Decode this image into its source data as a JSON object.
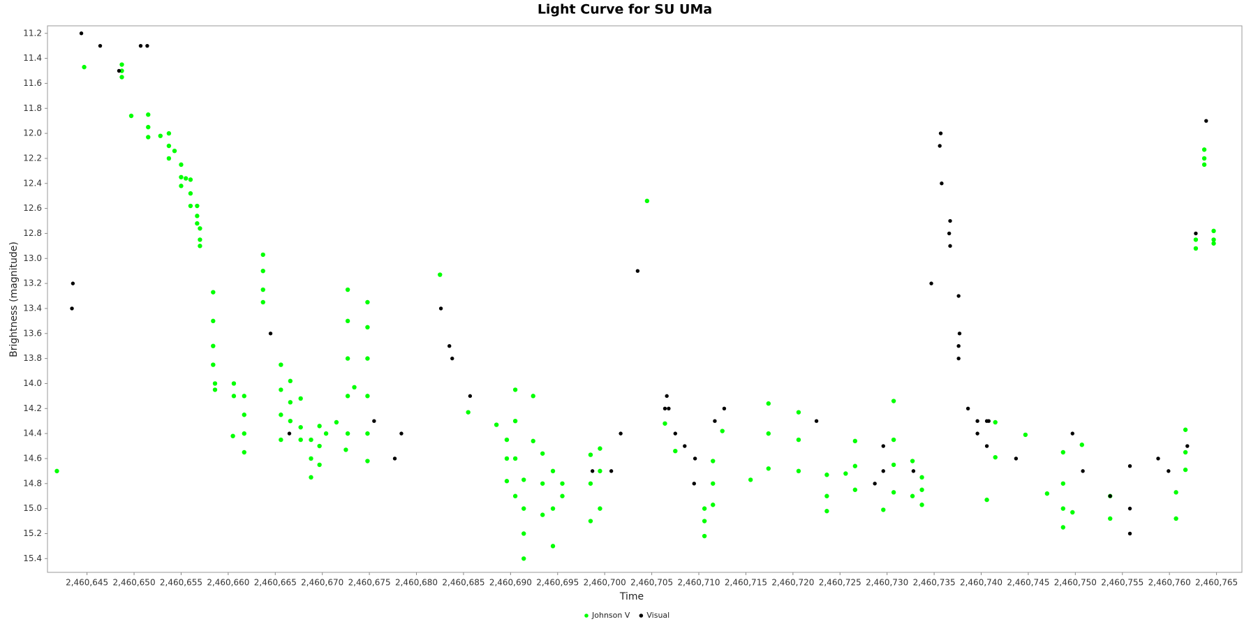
{
  "chart_data": {
    "type": "scatter",
    "title": "Light Curve for SU UMa",
    "x_label": "Time",
    "y_label": "Brightness (magnitude)",
    "y_inverted": true,
    "grid": false,
    "legend": "bottom",
    "xlim": [
      2460640.8,
      2460767.7
    ],
    "ylim": [
      11.14,
      15.51
    ],
    "xticks": [
      {
        "value": 2460645,
        "label": "2,460,645"
      },
      {
        "value": 2460650,
        "label": "2,460,650"
      },
      {
        "value": 2460655,
        "label": "2,460,655"
      },
      {
        "value": 2460660,
        "label": "2,460,660"
      },
      {
        "value": 2460665,
        "label": "2,460,665"
      },
      {
        "value": 2460670,
        "label": "2,460,670"
      },
      {
        "value": 2460675,
        "label": "2,460,675"
      },
      {
        "value": 2460680,
        "label": "2,460,680"
      },
      {
        "value": 2460685,
        "label": "2,460,685"
      },
      {
        "value": 2460690,
        "label": "2,460,690"
      },
      {
        "value": 2460695,
        "label": "2,460,695"
      },
      {
        "value": 2460700,
        "label": "2,460,700"
      },
      {
        "value": 2460705,
        "label": "2,460,705"
      },
      {
        "value": 2460710,
        "label": "2,460,710"
      },
      {
        "value": 2460715,
        "label": "2,460,715"
      },
      {
        "value": 2460720,
        "label": "2,460,720"
      },
      {
        "value": 2460725,
        "label": "2,460,725"
      },
      {
        "value": 2460730,
        "label": "2,460,730"
      },
      {
        "value": 2460735,
        "label": "2,460,735"
      },
      {
        "value": 2460740,
        "label": "2,460,740"
      },
      {
        "value": 2460745,
        "label": "2,460,745"
      },
      {
        "value": 2460750,
        "label": "2,460,750"
      },
      {
        "value": 2460755,
        "label": "2,460,755"
      },
      {
        "value": 2460760,
        "label": "2,460,760"
      },
      {
        "value": 2460765,
        "label": "2,460,765"
      }
    ],
    "yticks": [
      11.2,
      11.4,
      11.6,
      11.8,
      {
        "value": 12,
        "label": "12.0"
      },
      12.2,
      12.4,
      12.6,
      12.8,
      {
        "value": 13,
        "label": "13.0"
      },
      13.2,
      13.4,
      13.6,
      13.8,
      {
        "value": 14,
        "label": "14.0"
      },
      14.2,
      14.4,
      14.6,
      14.8,
      {
        "value": 15,
        "label": "15.0"
      },
      15.2,
      15.4
    ],
    "series": [
      {
        "name": "Johnson V",
        "color": "#00ff00",
        "x": [
          2460641.8,
          2460644.7,
          2460648.7,
          2460648.7,
          2460648.7,
          2460649.7,
          2460651.5,
          2460651.5,
          2460651.5,
          2460652.8,
          2460653.7,
          2460653.7,
          2460653.7,
          2460654.3,
          2460655,
          2460655,
          2460655,
          2460655.5,
          2460656,
          2460656,
          2460656,
          2460656.7,
          2460656.7,
          2460656.7,
          2460657,
          2460657,
          2460657,
          2460658.4,
          2460658.4,
          2460658.4,
          2460658.4,
          2460658.6,
          2460658.6,
          2460660.6,
          2460660.6,
          2460660.5,
          2460661.7,
          2460661.7,
          2460661.7,
          2460661.7,
          2460663.7,
          2460663.7,
          2460663.7,
          2460663.7,
          2460665.6,
          2460665.6,
          2460665.6,
          2460665.6,
          2460666.6,
          2460666.6,
          2460666.6,
          2460667.7,
          2460667.7,
          2460667.7,
          2460668.8,
          2460668.8,
          2460668.8,
          2460669.7,
          2460669.7,
          2460669.7,
          2460670.4,
          2460671.5,
          2460672.5,
          2460672.7,
          2460672.7,
          2460672.7,
          2460672.7,
          2460672.7,
          2460673.4,
          2460674.8,
          2460674.8,
          2460674.8,
          2460674.8,
          2460674.8,
          2460674.8,
          2460682.5,
          2460685.5,
          2460688.5,
          2460689.6,
          2460689.6,
          2460689.6,
          2460690.5,
          2460690.5,
          2460690.5,
          2460690.5,
          2460691.4,
          2460691.4,
          2460691.4,
          2460691.4,
          2460692.4,
          2460692.4,
          2460693.4,
          2460693.4,
          2460693.4,
          2460694.5,
          2460694.5,
          2460694.5,
          2460695.5,
          2460695.5,
          2460698.5,
          2460698.5,
          2460698.5,
          2460699.5,
          2460699.5,
          2460699.5,
          2460704.5,
          2460706.4,
          2460707.5,
          2460710.6,
          2460710.6,
          2460710.6,
          2460711.5,
          2460711.5,
          2460711.5,
          2460712.5,
          2460715.5,
          2460717.4,
          2460717.4,
          2460717.4,
          2460720.6,
          2460720.6,
          2460720.6,
          2460723.6,
          2460723.6,
          2460723.6,
          2460725.6,
          2460726.6,
          2460726.6,
          2460726.6,
          2460729.6,
          2460730.7,
          2460730.7,
          2460730.7,
          2460730.7,
          2460732.7,
          2460732.7,
          2460733.7,
          2460733.7,
          2460733.7,
          2460741.5,
          2460740.6,
          2460741.5,
          2460744.7,
          2460747.0,
          2460748.7,
          2460748.7,
          2460748.7,
          2460748.7,
          2460749.7,
          2460750.7,
          2460753.7,
          2460753.7,
          2460760.7,
          2460760.7,
          2460761.7,
          2460761.7,
          2460761.7,
          2460762.8,
          2460762.8,
          2460763.7,
          2460763.7,
          2460763.7,
          2460764.7,
          2460764.7,
          2460764.7
        ],
        "values": [
          14.7,
          11.47,
          11.45,
          11.5,
          11.55,
          11.86,
          11.85,
          11.95,
          12.03,
          12.02,
          12.0,
          12.1,
          12.2,
          12.14,
          12.25,
          12.35,
          12.42,
          12.36,
          12.37,
          12.48,
          12.58,
          12.58,
          12.66,
          12.72,
          12.76,
          12.85,
          12.9,
          13.27,
          13.5,
          13.7,
          13.85,
          14.0,
          14.05,
          14.0,
          14.1,
          14.42,
          14.1,
          14.25,
          14.4,
          14.55,
          12.97,
          13.1,
          13.25,
          13.35,
          13.85,
          14.05,
          14.25,
          14.45,
          13.98,
          14.15,
          14.3,
          14.12,
          14.35,
          14.45,
          14.45,
          14.6,
          14.75,
          14.34,
          14.5,
          14.65,
          14.4,
          14.31,
          14.53,
          13.25,
          13.5,
          13.8,
          14.1,
          14.4,
          14.03,
          13.35,
          13.55,
          13.8,
          14.1,
          14.4,
          14.62,
          13.13,
          14.23,
          14.33,
          14.45,
          14.6,
          14.78,
          14.05,
          14.3,
          14.6,
          14.9,
          14.77,
          15.0,
          15.2,
          15.4,
          14.1,
          14.46,
          14.56,
          14.8,
          15.05,
          14.7,
          15.0,
          15.3,
          14.8,
          14.9,
          14.57,
          14.8,
          15.1,
          14.52,
          14.7,
          15.0,
          12.54,
          14.32,
          14.54,
          15.0,
          15.1,
          15.22,
          14.62,
          14.8,
          14.97,
          14.38,
          14.77,
          14.16,
          14.4,
          14.68,
          14.23,
          14.45,
          14.7,
          14.73,
          14.9,
          15.02,
          14.72,
          14.46,
          14.66,
          14.85,
          15.01,
          14.14,
          14.45,
          14.65,
          14.87,
          14.62,
          14.9,
          14.75,
          14.85,
          14.97,
          14.31,
          14.93,
          14.59,
          14.41,
          14.88,
          14.55,
          14.8,
          15.0,
          15.15,
          15.03,
          14.49,
          14.9,
          15.08,
          14.87,
          15.08,
          14.37,
          14.55,
          14.69,
          12.85,
          12.92,
          12.13,
          12.2,
          12.25,
          12.78,
          12.85,
          12.88
        ]
      },
      {
        "name": "Visual",
        "color": "#000000",
        "x": [
          2460644.4,
          2460646.4,
          2460648.4,
          2460650.7,
          2460651.4,
          2460643.5,
          2460643.4,
          2460664.5,
          2460666.5,
          2460675.5,
          2460677.7,
          2460678.4,
          2460682.6,
          2460683.5,
          2460683.8,
          2460685.7,
          2460698.7,
          2460700.7,
          2460701.7,
          2460703.5,
          2460706.6,
          2460706.4,
          2460706.8,
          2460707.5,
          2460708.5,
          2460709.6,
          2460709.5,
          2460711.7,
          2460712.7,
          2460722.5,
          2460728.7,
          2460729.6,
          2460729.6,
          2460732.8,
          2460734.7,
          2460735.7,
          2460735.6,
          2460735.8,
          2460736.7,
          2460736.6,
          2460736.7,
          2460737.6,
          2460737.7,
          2460737.6,
          2460737.6,
          2460738.6,
          2460739.6,
          2460739.6,
          2460740.6,
          2460740.8,
          2460740.6,
          2460743.7,
          2460749.7,
          2460750.8,
          2460753.7,
          2460755.8,
          2460755.8,
          2460755.8,
          2460758.8,
          2460759.9,
          2460761.9,
          2460762.8,
          2460763.9
        ],
        "values": [
          11.2,
          11.3,
          11.5,
          11.3,
          11.3,
          13.2,
          13.4,
          13.6,
          14.4,
          14.3,
          14.6,
          14.4,
          13.4,
          13.7,
          13.8,
          14.1,
          14.7,
          14.7,
          14.4,
          13.1,
          14.1,
          14.2,
          14.2,
          14.4,
          14.5,
          14.6,
          14.8,
          14.3,
          14.2,
          14.3,
          14.8,
          14.5,
          14.7,
          14.7,
          13.2,
          12.0,
          12.1,
          12.4,
          12.7,
          12.8,
          12.9,
          13.3,
          13.6,
          13.7,
          13.8,
          14.2,
          14.3,
          14.4,
          14.3,
          14.3,
          14.5,
          14.6,
          14.4,
          14.7,
          14.9,
          14.66,
          15.0,
          15.2,
          14.6,
          14.7,
          14.5,
          12.8,
          11.9
        ]
      }
    ]
  }
}
